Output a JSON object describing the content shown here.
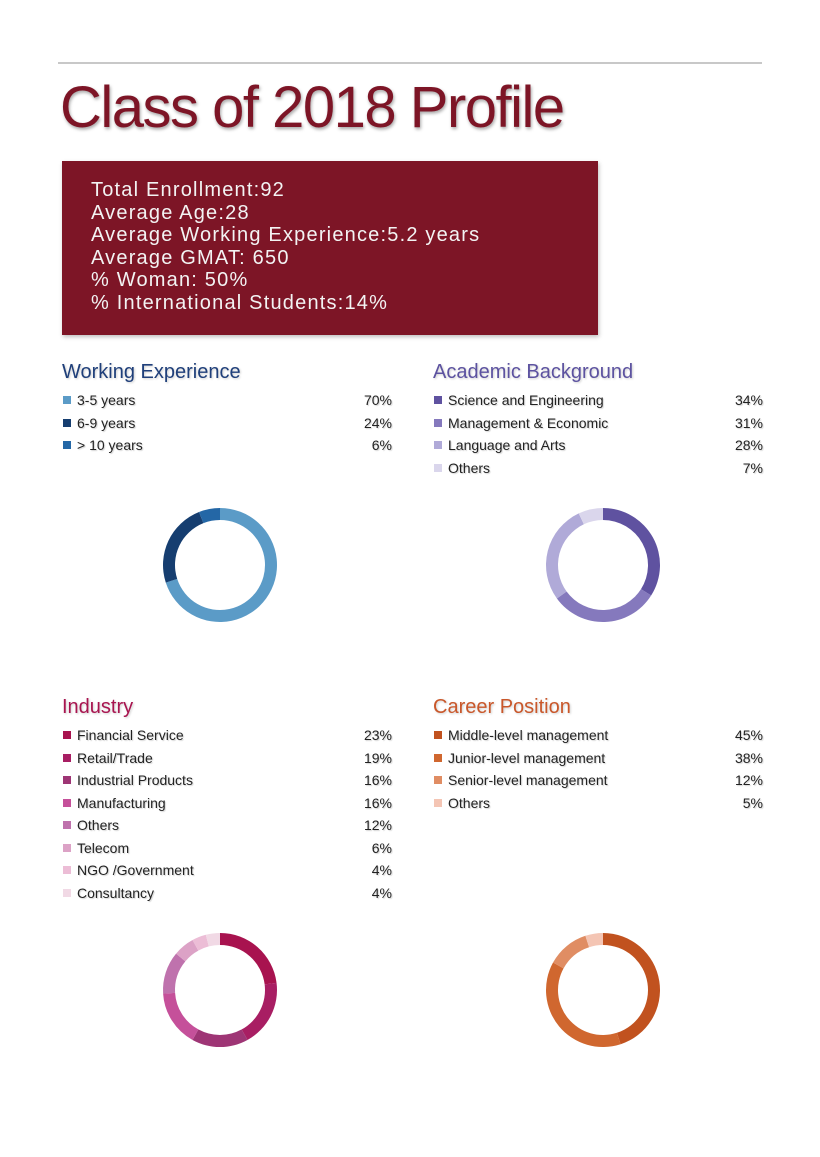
{
  "title": "Class of 2018 Profile",
  "stats": [
    "Total Enrollment:92",
    "Average Age:28",
    "Average Working Experience:5.2 years",
    "Average GMAT: 650",
    "% Woman: 50%",
    "% International Students:14%"
  ],
  "colors": {
    "title": "#7d1526",
    "stats_box": "#7d1526"
  },
  "chart_data": [
    {
      "type": "pie",
      "title": "Working Experience",
      "title_color": "#1f3f7a",
      "categories": [
        "3-5 years",
        "6-9 years",
        "> 10 years"
      ],
      "values": [
        70,
        24,
        6
      ],
      "value_labels": [
        "70%",
        "24%",
        "6%"
      ],
      "colors": [
        "#5b9bc7",
        "#163e70",
        "#2467a6"
      ]
    },
    {
      "type": "pie",
      "title": "Academic Background",
      "title_color": "#5c52a0",
      "categories": [
        "Science and Engineering",
        "Management & Economic",
        "Language and Arts",
        "Others"
      ],
      "values": [
        34,
        31,
        28,
        7
      ],
      "value_labels": [
        "34%",
        "31%",
        "28%",
        "7%"
      ],
      "colors": [
        "#5f52a0",
        "#8579bd",
        "#b0aad8",
        "#dad6ec"
      ]
    },
    {
      "type": "pie",
      "title": "Industry",
      "title_color": "#a8144f",
      "categories": [
        "Financial Service",
        "Retail/Trade",
        "Industrial Products",
        "Manufacturing",
        "Others",
        "Telecom",
        "NGO /Government",
        "Consultancy"
      ],
      "values": [
        23,
        19,
        16,
        16,
        12,
        6,
        4,
        4
      ],
      "value_labels": [
        "23%",
        "19%",
        "16%",
        "16%",
        "12%",
        "6%",
        "4%",
        "4%"
      ],
      "colors": [
        "#a8134f",
        "#a81e63",
        "#9e3575",
        "#c5509a",
        "#bf72ad",
        "#dca2c6",
        "#ecbdd6",
        "#f1d9e5"
      ]
    },
    {
      "type": "pie",
      "title": "Career Position",
      "title_color": "#c9572a",
      "categories": [
        "Middle-level management",
        "Junior-level management",
        "Senior-level management",
        "Others"
      ],
      "values": [
        45,
        38,
        12,
        5
      ],
      "value_labels": [
        "45%",
        "38%",
        "12%",
        "5%"
      ],
      "colors": [
        "#c1521f",
        "#d0672f",
        "#e08d63",
        "#f4c5b4"
      ]
    }
  ]
}
